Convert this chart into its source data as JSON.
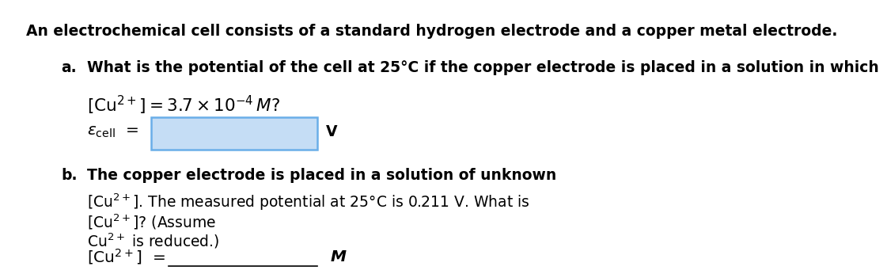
{
  "background_color": "#ffffff",
  "text_color": "#000000",
  "fontsize": 13.5,
  "title": "An electrochemical cell consists of a standard hydrogen electrode and a copper metal electrode.",
  "part_a_label": "a.",
  "part_a_question": "What is the potential of the cell at 25°C if the copper electrode is placed in a solution in which",
  "part_a_conc": "$\\left[\\mathrm{Cu}^{2+}\\right] = 3.7 \\times 10^{-4}\\,M?$",
  "ecell_label": "$\\varepsilon_{\\mathrm{cell}}$",
  "ecell_box_facecolor": "#c5ddf5",
  "ecell_box_edgecolor": "#6aaee8",
  "part_b_label": "b.",
  "part_b_line1": "The copper electrode is placed in a solution of unknown",
  "part_b_line2_math": "$\\left[\\mathrm{Cu}^{2+}\\right]$",
  "part_b_line2_text": ". The measured potential at 25°C is 0.211 V. What is",
  "part_b_line3_math": "$\\left[\\mathrm{Cu}^{2+}\\right]$",
  "part_b_line3_text": "? (Assume",
  "part_b_line4": "$\\mathrm{Cu}^{2+}$",
  "part_b_line4_text": " is reduced.)",
  "answer_math": "$\\left[\\mathrm{Cu}^{2+}\\right]$",
  "answer_M": "M"
}
